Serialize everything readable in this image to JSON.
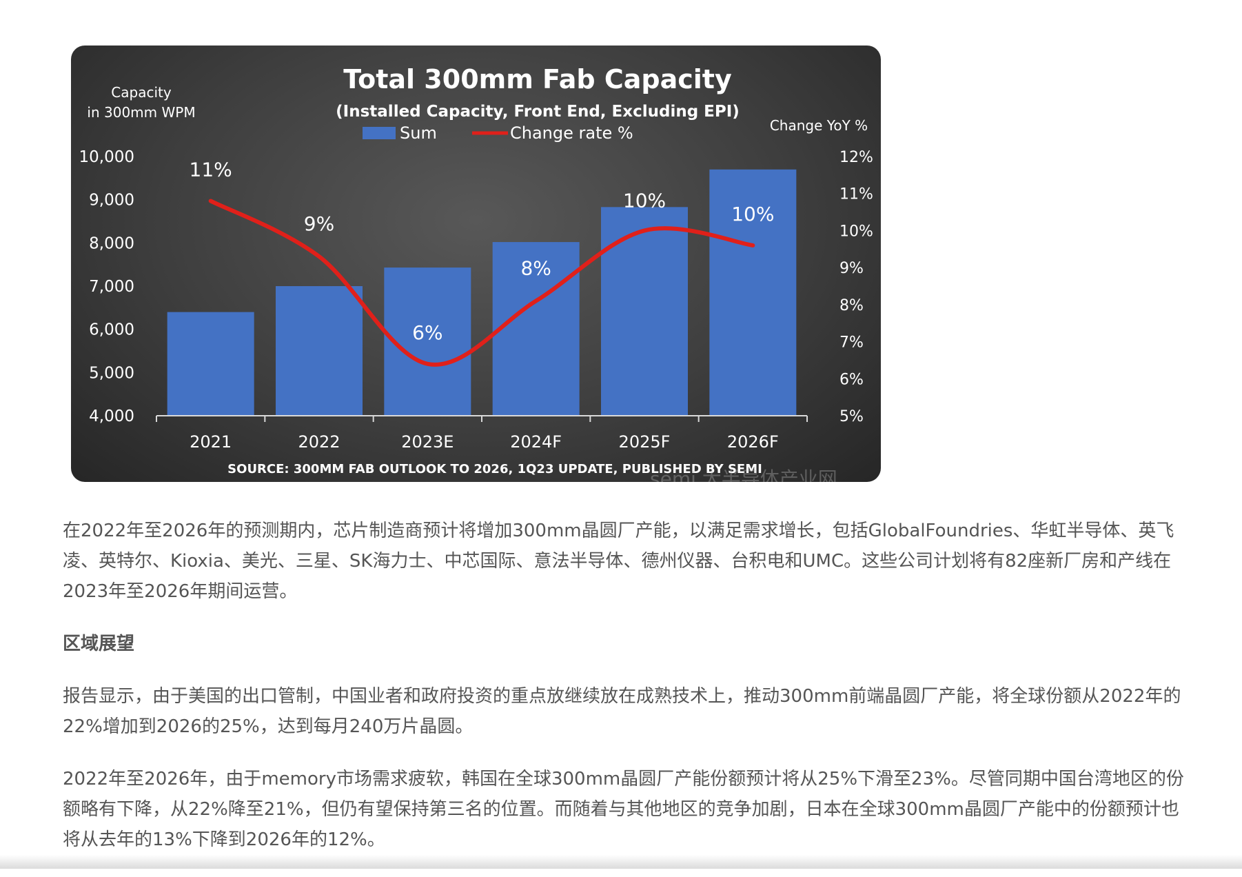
{
  "chart_data": {
    "type": "bar",
    "title": "Total 300mm Fab Capacity",
    "subtitle": "(Installed Capacity, Front End, Excluding EPI)",
    "ylabel_left_line1": "Capacity",
    "ylabel_left_line2": "in 300mm WPM",
    "ylabel_right": "Change YoY %",
    "categories": [
      "2021",
      "2022",
      "2023E",
      "2024F",
      "2025F",
      "2026F"
    ],
    "series": [
      {
        "name": "Sum",
        "type": "bar",
        "color": "#4472c4",
        "values": [
          6400,
          7000,
          7430,
          8020,
          8830,
          9700
        ]
      },
      {
        "name": "Change rate %",
        "type": "line",
        "color": "#e0201a",
        "values": [
          10.8,
          9.3,
          6.4,
          8.1,
          10.0,
          9.6
        ],
        "data_labels": [
          "11%",
          "9%",
          "6%",
          "8%",
          "10%",
          "10%"
        ]
      }
    ],
    "ylim": [
      4000,
      10000
    ],
    "yticks": [
      "4,000",
      "5,000",
      "6,000",
      "7,000",
      "8,000",
      "9,000",
      "10,000"
    ],
    "y2lim": [
      5,
      12
    ],
    "y2ticks": [
      "5%",
      "6%",
      "7%",
      "8%",
      "9%",
      "10%",
      "11%",
      "12%"
    ],
    "legend_position": "top-center",
    "grid": false,
    "source": "SOURCE: 300MM FAB OUTLOOK TO 2026, 1Q23 UPDATE, PUBLISHED BY SEMI",
    "watermark": "semi 大半导体产业网"
  },
  "article": {
    "para1": "在2022年至2026年的预测期内，芯片制造商预计将增加300mm晶圆厂产能，以满足需求增长，包括GlobalFoundries、华虹半导体、英飞凌、英特尔、Kioxia、美光、三星、SK海力士、中芯国际、意法半导体、德州仪器、台积电和UMC。这些公司计划将有82座新厂房和产线在2023年至2026年期间运营。",
    "heading": "区域展望",
    "para2": "报告显示，由于美国的出口管制，中国业者和政府投资的重点放继续放在成熟技术上，推动300mm前端晶圆厂产能，将全球份额从2022年的22%增加到2026的25%，达到每月240万片晶圆。",
    "para3": "2022年至2026年，由于memory市场需求疲软，韩国在全球300mm晶圆厂产能份额预计将从25%下滑至23%。尽管同期中国台湾地区的份额略有下降，从22%降至21%，但仍有望保持第三名的位置。而随着与其他地区的竞争加剧，日本在全球300mm晶圆厂产能中的份额预计也将从去年的13%下降到2026年的12%。"
  }
}
